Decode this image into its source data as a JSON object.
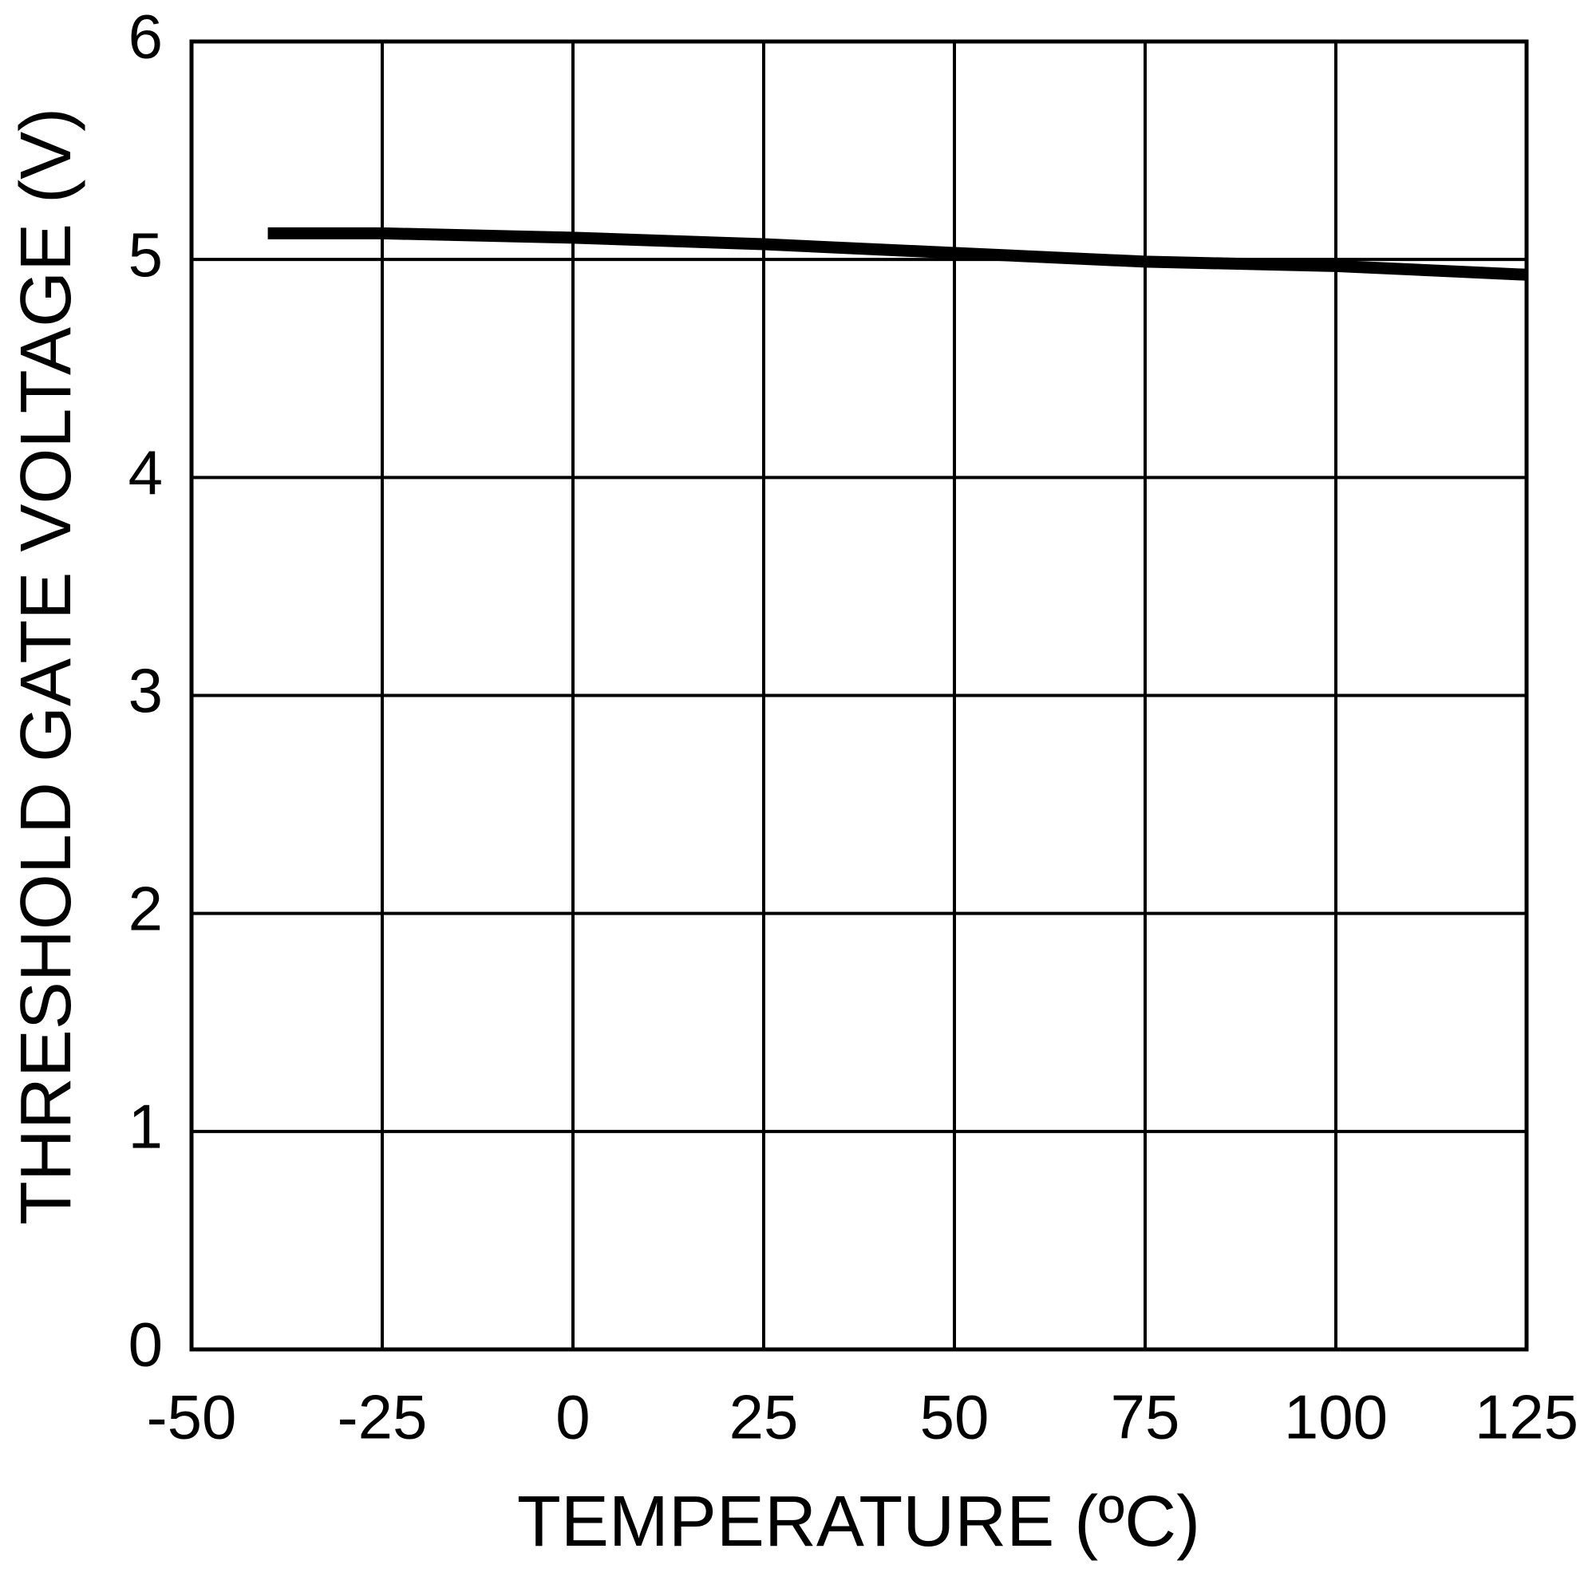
{
  "chart_data": {
    "type": "line",
    "x_label": "TEMPERATURE (ºC)",
    "y_label": "THRESHOLD GATE VOLTAGE (V)",
    "x": [
      -40,
      -25,
      0,
      25,
      50,
      75,
      100,
      125
    ],
    "series": [
      {
        "color": "#000000",
        "values": [
          5.12,
          5.12,
          5.1,
          5.07,
          5.03,
          4.99,
          4.97,
          4.93
        ]
      }
    ],
    "xlim": [
      -50,
      125
    ],
    "xticks": [
      -50,
      -25,
      0,
      25,
      50,
      75,
      100,
      125
    ],
    "ylim": [
      0,
      6
    ],
    "yticks": [
      0,
      1,
      2,
      3,
      4,
      5,
      6
    ],
    "grid": true
  }
}
